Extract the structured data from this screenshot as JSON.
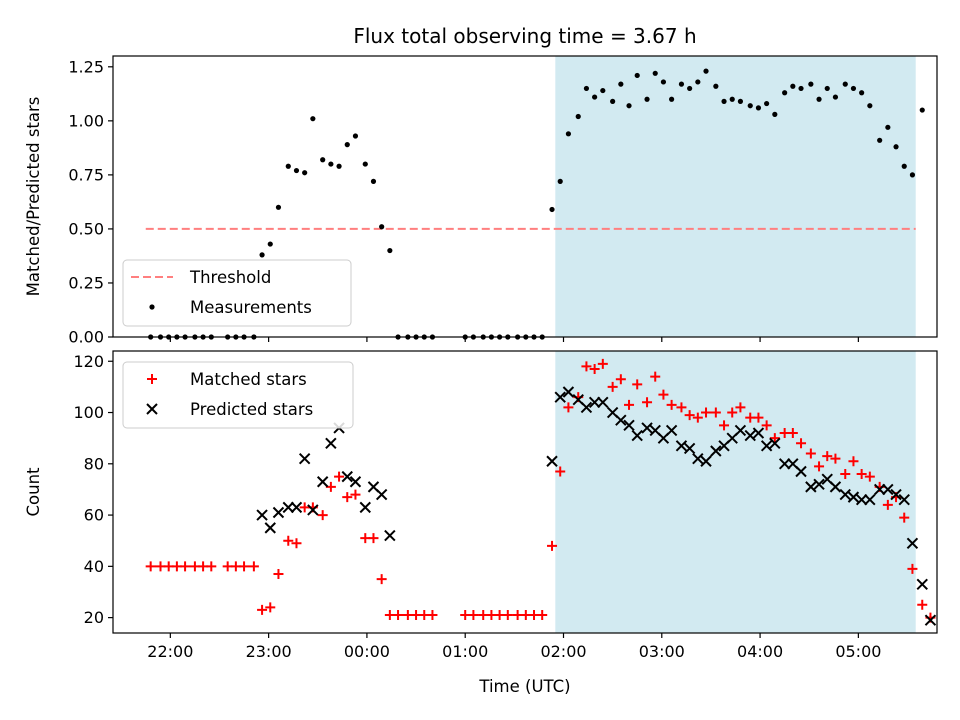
{
  "title": "Flux total observing time = 3.67 h",
  "colors": {
    "shade": "#add8e6",
    "threshold": "#ff7f7f",
    "measurements": "#000000",
    "matched": "#ff0000",
    "predicted": "#000000"
  },
  "chart_data": [
    {
      "type": "scatter",
      "ylabel": "Matched/Predicted stars",
      "ylim": [
        0,
        1.3
      ],
      "yticks": [
        0,
        0.25,
        0.5,
        0.75,
        1.0,
        1.25
      ],
      "ytick_labels": [
        "0.00",
        "0.25",
        "0.50",
        "0.75",
        "1.00",
        "1.25"
      ],
      "grid": false,
      "legend_position": "lower-left",
      "shaded_span": {
        "start": "01:55",
        "end": "05:35"
      },
      "threshold": {
        "name": "Threshold",
        "value": 0.5,
        "x_start": "21:45",
        "x_end": "05:35"
      },
      "series": [
        {
          "name": "Measurements",
          "marker": "dot",
          "points": [
            [
              "21:48",
              0
            ],
            [
              "21:54",
              0
            ],
            [
              "21:59",
              0
            ],
            [
              "22:04",
              0
            ],
            [
              "22:09",
              0
            ],
            [
              "22:15",
              0
            ],
            [
              "22:20",
              0
            ],
            [
              "22:25",
              0
            ],
            [
              "22:35",
              0
            ],
            [
              "22:40",
              0
            ],
            [
              "22:45",
              0
            ],
            [
              "22:51",
              0
            ],
            [
              "22:56",
              0.38
            ],
            [
              "23:01",
              0.43
            ],
            [
              "23:06",
              0.6
            ],
            [
              "23:12",
              0.79
            ],
            [
              "23:17",
              0.77
            ],
            [
              "23:22",
              0.76
            ],
            [
              "23:27",
              1.01
            ],
            [
              "23:33",
              0.82
            ],
            [
              "23:38",
              0.8
            ],
            [
              "23:43",
              0.79
            ],
            [
              "23:48",
              0.89
            ],
            [
              "23:53",
              0.93
            ],
            [
              "23:59",
              0.8
            ],
            [
              "00:04",
              0.72
            ],
            [
              "00:09",
              0.51
            ],
            [
              "00:14",
              0.4
            ],
            [
              "00:19",
              0
            ],
            [
              "00:25",
              0
            ],
            [
              "00:30",
              0
            ],
            [
              "00:35",
              0
            ],
            [
              "00:40",
              0
            ],
            [
              "01:00",
              0
            ],
            [
              "01:05",
              0
            ],
            [
              "01:11",
              0
            ],
            [
              "01:16",
              0
            ],
            [
              "01:21",
              0
            ],
            [
              "01:26",
              0
            ],
            [
              "01:32",
              0
            ],
            [
              "01:37",
              0
            ],
            [
              "01:42",
              0
            ],
            [
              "01:47",
              0
            ],
            [
              "01:53",
              0.59
            ],
            [
              "01:58",
              0.72
            ],
            [
              "02:03",
              0.94
            ],
            [
              "02:09",
              1.02
            ],
            [
              "02:14",
              1.15
            ],
            [
              "02:19",
              1.11
            ],
            [
              "02:24",
              1.14
            ],
            [
              "02:30",
              1.09
            ],
            [
              "02:35",
              1.17
            ],
            [
              "02:40",
              1.07
            ],
            [
              "02:45",
              1.21
            ],
            [
              "02:51",
              1.1
            ],
            [
              "02:56",
              1.22
            ],
            [
              "03:01",
              1.18
            ],
            [
              "03:06",
              1.1
            ],
            [
              "03:12",
              1.17
            ],
            [
              "03:17",
              1.15
            ],
            [
              "03:22",
              1.18
            ],
            [
              "03:27",
              1.23
            ],
            [
              "03:33",
              1.16
            ],
            [
              "03:38",
              1.09
            ],
            [
              "03:43",
              1.1
            ],
            [
              "03:48",
              1.09
            ],
            [
              "03:54",
              1.07
            ],
            [
              "03:59",
              1.06
            ],
            [
              "04:04",
              1.08
            ],
            [
              "04:09",
              1.03
            ],
            [
              "04:15",
              1.13
            ],
            [
              "04:20",
              1.16
            ],
            [
              "04:25",
              1.15
            ],
            [
              "04:31",
              1.17
            ],
            [
              "04:36",
              1.1
            ],
            [
              "04:41",
              1.15
            ],
            [
              "04:46",
              1.11
            ],
            [
              "04:52",
              1.17
            ],
            [
              "04:57",
              1.15
            ],
            [
              "05:02",
              1.13
            ],
            [
              "05:07",
              1.07
            ],
            [
              "05:13",
              0.91
            ],
            [
              "05:18",
              0.97
            ],
            [
              "05:23",
              0.88
            ],
            [
              "05:28",
              0.79
            ],
            [
              "05:33",
              0.75
            ],
            [
              "05:39",
              1.05
            ]
          ]
        }
      ]
    },
    {
      "type": "scatter",
      "ylabel": "Count",
      "xlabel": "Time (UTC)",
      "ylim": [
        14,
        124
      ],
      "yticks": [
        20,
        40,
        60,
        80,
        100,
        120
      ],
      "ytick_labels": [
        "20",
        "40",
        "60",
        "80",
        "100",
        "120"
      ],
      "xticks": [
        "22:00",
        "23:00",
        "00:00",
        "01:00",
        "02:00",
        "03:00",
        "04:00",
        "05:00"
      ],
      "x_range": [
        "21:25",
        "05:48"
      ],
      "grid": false,
      "legend_position": "top-left",
      "shaded_span": {
        "start": "01:55",
        "end": "05:35"
      },
      "series": [
        {
          "name": "Matched stars",
          "marker": "plus",
          "points": [
            [
              "21:48",
              40
            ],
            [
              "21:54",
              40
            ],
            [
              "21:59",
              40
            ],
            [
              "22:04",
              40
            ],
            [
              "22:09",
              40
            ],
            [
              "22:15",
              40
            ],
            [
              "22:20",
              40
            ],
            [
              "22:25",
              40
            ],
            [
              "22:35",
              40
            ],
            [
              "22:40",
              40
            ],
            [
              "22:45",
              40
            ],
            [
              "22:51",
              40
            ],
            [
              "22:56",
              23
            ],
            [
              "23:01",
              24
            ],
            [
              "23:06",
              37
            ],
            [
              "23:12",
              50
            ],
            [
              "23:17",
              49
            ],
            [
              "23:22",
              63
            ],
            [
              "23:27",
              63
            ],
            [
              "23:33",
              60
            ],
            [
              "23:38",
              71
            ],
            [
              "23:43",
              75
            ],
            [
              "23:48",
              67
            ],
            [
              "23:53",
              68
            ],
            [
              "23:59",
              51
            ],
            [
              "00:04",
              51
            ],
            [
              "00:09",
              35
            ],
            [
              "00:14",
              21
            ],
            [
              "00:19",
              21
            ],
            [
              "00:25",
              21
            ],
            [
              "00:30",
              21
            ],
            [
              "00:35",
              21
            ],
            [
              "00:40",
              21
            ],
            [
              "01:00",
              21
            ],
            [
              "01:05",
              21
            ],
            [
              "01:11",
              21
            ],
            [
              "01:16",
              21
            ],
            [
              "01:21",
              21
            ],
            [
              "01:26",
              21
            ],
            [
              "01:32",
              21
            ],
            [
              "01:37",
              21
            ],
            [
              "01:42",
              21
            ],
            [
              "01:47",
              21
            ],
            [
              "01:53",
              48
            ],
            [
              "01:58",
              77
            ],
            [
              "02:03",
              102
            ],
            [
              "02:09",
              106
            ],
            [
              "02:14",
              118
            ],
            [
              "02:19",
              117
            ],
            [
              "02:24",
              119
            ],
            [
              "02:30",
              110
            ],
            [
              "02:35",
              113
            ],
            [
              "02:40",
              103
            ],
            [
              "02:45",
              111
            ],
            [
              "02:51",
              104
            ],
            [
              "02:56",
              114
            ],
            [
              "03:01",
              107
            ],
            [
              "03:06",
              103
            ],
            [
              "03:12",
              102
            ],
            [
              "03:17",
              99
            ],
            [
              "03:22",
              98
            ],
            [
              "03:27",
              100
            ],
            [
              "03:33",
              100
            ],
            [
              "03:38",
              95
            ],
            [
              "03:43",
              100
            ],
            [
              "03:48",
              102
            ],
            [
              "03:54",
              98
            ],
            [
              "03:59",
              98
            ],
            [
              "04:04",
              95
            ],
            [
              "04:09",
              90
            ],
            [
              "04:15",
              92
            ],
            [
              "04:20",
              92
            ],
            [
              "04:25",
              88
            ],
            [
              "04:31",
              84
            ],
            [
              "04:36",
              79
            ],
            [
              "04:41",
              83
            ],
            [
              "04:46",
              82
            ],
            [
              "04:52",
              76
            ],
            [
              "04:57",
              81
            ],
            [
              "05:02",
              76
            ],
            [
              "05:07",
              75
            ],
            [
              "05:13",
              71
            ],
            [
              "05:18",
              64
            ],
            [
              "05:23",
              67
            ],
            [
              "05:28",
              59
            ],
            [
              "05:33",
              39
            ],
            [
              "05:39",
              25
            ],
            [
              "05:44",
              20
            ]
          ]
        },
        {
          "name": "Predicted stars",
          "marker": "x",
          "points": [
            [
              "22:56",
              60
            ],
            [
              "23:01",
              55
            ],
            [
              "23:06",
              61
            ],
            [
              "23:12",
              63
            ],
            [
              "23:17",
              63
            ],
            [
              "23:22",
              82
            ],
            [
              "23:27",
              62
            ],
            [
              "23:33",
              73
            ],
            [
              "23:38",
              88
            ],
            [
              "23:43",
              94
            ],
            [
              "23:48",
              75
            ],
            [
              "23:53",
              73
            ],
            [
              "23:59",
              63
            ],
            [
              "00:04",
              71
            ],
            [
              "00:09",
              68
            ],
            [
              "00:14",
              52
            ],
            [
              "01:53",
              81
            ],
            [
              "01:58",
              106
            ],
            [
              "02:03",
              108
            ],
            [
              "02:09",
              105
            ],
            [
              "02:14",
              102
            ],
            [
              "02:19",
              104
            ],
            [
              "02:24",
              104
            ],
            [
              "02:30",
              100
            ],
            [
              "02:35",
              97
            ],
            [
              "02:40",
              95
            ],
            [
              "02:45",
              91
            ],
            [
              "02:51",
              94
            ],
            [
              "02:56",
              93
            ],
            [
              "03:01",
              90
            ],
            [
              "03:06",
              93
            ],
            [
              "03:12",
              87
            ],
            [
              "03:17",
              86
            ],
            [
              "03:22",
              82
            ],
            [
              "03:27",
              81
            ],
            [
              "03:33",
              85
            ],
            [
              "03:38",
              87
            ],
            [
              "03:43",
              90
            ],
            [
              "03:48",
              93
            ],
            [
              "03:54",
              91
            ],
            [
              "03:59",
              92
            ],
            [
              "04:04",
              87
            ],
            [
              "04:09",
              88
            ],
            [
              "04:15",
              80
            ],
            [
              "04:20",
              80
            ],
            [
              "04:25",
              77
            ],
            [
              "04:31",
              71
            ],
            [
              "04:36",
              72
            ],
            [
              "04:41",
              74
            ],
            [
              "04:46",
              71
            ],
            [
              "04:52",
              68
            ],
            [
              "04:57",
              67
            ],
            [
              "05:02",
              66
            ],
            [
              "05:07",
              66
            ],
            [
              "05:13",
              70
            ],
            [
              "05:18",
              70
            ],
            [
              "05:23",
              68
            ],
            [
              "05:28",
              66
            ],
            [
              "05:33",
              49
            ],
            [
              "05:39",
              33
            ],
            [
              "05:44",
              19
            ]
          ]
        }
      ]
    }
  ]
}
